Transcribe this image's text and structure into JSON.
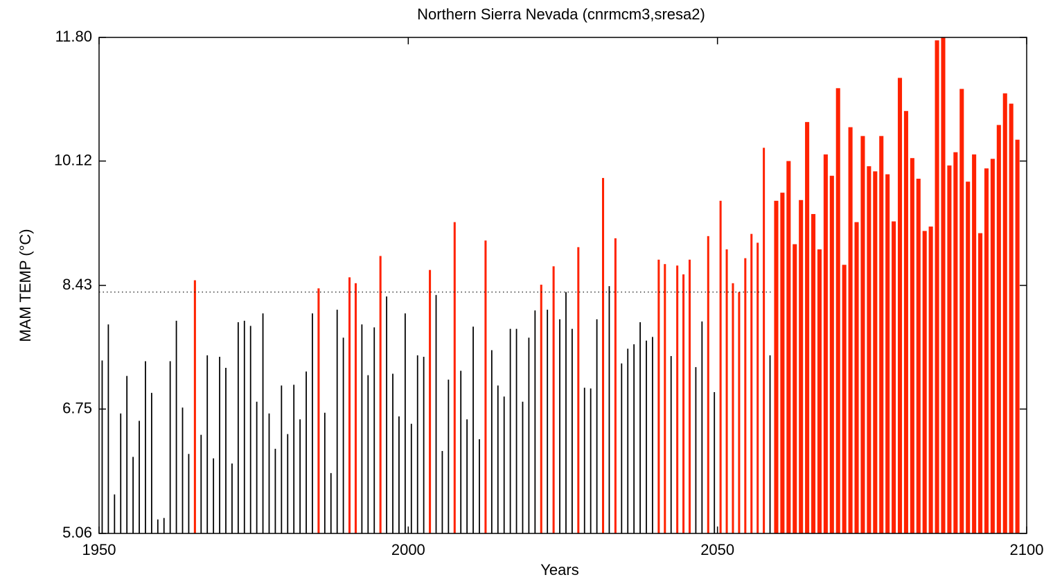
{
  "chart_data": {
    "type": "bar",
    "title": "Northern Sierra Nevada (cnrmcm3,sresa2)",
    "xlabel": "Years",
    "ylabel": "MAM TEMP (°C)",
    "xlim": [
      1950,
      2100
    ],
    "xticks": [
      1950,
      2000,
      2050,
      2100
    ],
    "ylim": [
      5.06,
      11.8
    ],
    "yticks": [
      5.06,
      6.75,
      8.43,
      10.12,
      {
        "value": 11.8,
        "label": "11.80"
      }
    ],
    "reference_line": {
      "value": 8.34,
      "x_end": 2059,
      "color": "#000000"
    },
    "x": [
      1951,
      1952,
      1953,
      1954,
      1955,
      1956,
      1957,
      1958,
      1959,
      1960,
      1961,
      1962,
      1963,
      1964,
      1965,
      1966,
      1967,
      1968,
      1969,
      1970,
      1971,
      1972,
      1973,
      1974,
      1975,
      1976,
      1977,
      1978,
      1979,
      1980,
      1981,
      1982,
      1983,
      1984,
      1985,
      1986,
      1987,
      1988,
      1989,
      1990,
      1991,
      1992,
      1993,
      1994,
      1995,
      1996,
      1997,
      1998,
      1999,
      2000,
      2001,
      2002,
      2003,
      2004,
      2005,
      2006,
      2007,
      2008,
      2009,
      2010,
      2011,
      2012,
      2013,
      2014,
      2015,
      2016,
      2017,
      2018,
      2019,
      2020,
      2021,
      2022,
      2023,
      2024,
      2025,
      2026,
      2027,
      2028,
      2029,
      2030,
      2031,
      2032,
      2033,
      2034,
      2035,
      2036,
      2037,
      2038,
      2039,
      2040,
      2041,
      2042,
      2043,
      2044,
      2045,
      2046,
      2047,
      2048,
      2049,
      2050,
      2051,
      2052,
      2053,
      2054,
      2055,
      2056,
      2057,
      2058,
      2059,
      2060,
      2061,
      2062,
      2063,
      2064,
      2065,
      2066,
      2067,
      2068,
      2069,
      2070,
      2071,
      2072,
      2073,
      2074,
      2075,
      2076,
      2077,
      2078,
      2079,
      2080,
      2081,
      2082,
      2083,
      2084,
      2085,
      2086,
      2087,
      2088,
      2089,
      2090,
      2091,
      2092,
      2093,
      2094,
      2095,
      2096,
      2097,
      2098,
      2099
    ],
    "values": [
      7.41,
      7.9,
      5.59,
      6.69,
      7.2,
      6.1,
      6.59,
      7.4,
      6.97,
      5.25,
      5.27,
      7.4,
      7.95,
      6.77,
      6.14,
      8.5,
      6.4,
      7.48,
      6.08,
      7.46,
      7.31,
      6.01,
      7.93,
      7.95,
      7.88,
      6.85,
      8.05,
      6.69,
      6.21,
      7.07,
      6.41,
      7.08,
      6.61,
      7.26,
      8.05,
      8.39,
      6.7,
      5.88,
      8.1,
      7.72,
      8.54,
      8.46,
      7.9,
      7.21,
      7.86,
      8.83,
      8.28,
      7.23,
      6.65,
      8.05,
      6.55,
      7.48,
      7.46,
      8.64,
      8.3,
      6.18,
      7.15,
      9.29,
      7.27,
      6.61,
      7.87,
      6.34,
      9.04,
      7.55,
      7.07,
      6.92,
      7.84,
      7.84,
      6.85,
      7.72,
      8.09,
      8.44,
      8.1,
      8.69,
      7.97,
      8.34,
      7.84,
      8.95,
      7.04,
      7.03,
      7.97,
      9.89,
      8.42,
      9.07,
      7.37,
      7.57,
      7.63,
      7.93,
      7.68,
      7.73,
      8.78,
      8.72,
      7.47,
      8.7,
      8.58,
      8.78,
      7.32,
      7.94,
      9.1,
      6.98,
      9.58,
      8.92,
      8.46,
      8.34,
      8.8,
      9.13,
      9.01,
      10.3,
      7.48,
      9.58,
      9.69,
      10.12,
      8.99,
      9.59,
      10.65,
      9.4,
      8.92,
      10.21,
      9.92,
      11.11,
      8.71,
      10.58,
      9.29,
      10.46,
      10.05,
      9.98,
      10.46,
      9.94,
      9.3,
      11.25,
      10.8,
      10.16,
      9.88,
      9.17,
      9.23,
      11.76,
      11.8,
      10.06,
      10.24,
      11.1,
      9.84,
      10.21,
      9.14,
      10.02,
      10.15,
      10.61,
      11.04,
      10.9,
      10.41
    ],
    "colors": [
      "#000000",
      "#000000",
      "#000000",
      "#000000",
      "#000000",
      "#000000",
      "#000000",
      "#000000",
      "#000000",
      "#000000",
      "#000000",
      "#000000",
      "#000000",
      "#000000",
      "#000000",
      "#ff2200",
      "#000000",
      "#000000",
      "#000000",
      "#000000",
      "#000000",
      "#000000",
      "#000000",
      "#000000",
      "#000000",
      "#000000",
      "#000000",
      "#000000",
      "#000000",
      "#000000",
      "#000000",
      "#000000",
      "#000000",
      "#000000",
      "#000000",
      "#ff2200",
      "#000000",
      "#000000",
      "#000000",
      "#000000",
      "#ff2200",
      "#ff2200",
      "#000000",
      "#000000",
      "#000000",
      "#ff2200",
      "#000000",
      "#000000",
      "#000000",
      "#000000",
      "#000000",
      "#000000",
      "#000000",
      "#ff2200",
      "#000000",
      "#000000",
      "#000000",
      "#ff2200",
      "#000000",
      "#000000",
      "#000000",
      "#000000",
      "#ff2200",
      "#000000",
      "#000000",
      "#000000",
      "#000000",
      "#000000",
      "#000000",
      "#000000",
      "#000000",
      "#ff2200",
      "#000000",
      "#ff2200",
      "#000000",
      "#000000",
      "#000000",
      "#ff2200",
      "#000000",
      "#000000",
      "#000000",
      "#ff2200",
      "#000000",
      "#ff2200",
      "#000000",
      "#000000",
      "#000000",
      "#000000",
      "#000000",
      "#000000",
      "#ff2200",
      "#ff2200",
      "#000000",
      "#ff2200",
      "#ff2200",
      "#ff2200",
      "#000000",
      "#000000",
      "#ff2200",
      "#000000",
      "#ff2200",
      "#ff2200",
      "#ff2200",
      "#ff2200",
      "#ff2200",
      "#ff2200",
      "#ff2200",
      "#ff2200",
      "#000000",
      "#ff2200",
      "#ff2200",
      "#ff2200",
      "#ff2200",
      "#ff2200",
      "#ff2200",
      "#ff2200",
      "#ff2200",
      "#ff2200",
      "#ff2200",
      "#ff2200",
      "#ff2200",
      "#ff2200",
      "#ff2200",
      "#ff2200",
      "#ff2200",
      "#ff2200",
      "#ff2200",
      "#ff2200",
      "#ff2200",
      "#ff2200",
      "#ff2200",
      "#ff2200",
      "#ff2200",
      "#ff2200",
      "#ff2200",
      "#ff2200",
      "#ff2200",
      "#ff2200",
      "#ff2200",
      "#ff2200",
      "#ff2200",
      "#ff2200",
      "#ff2200",
      "#ff2200",
      "#ff2200",
      "#ff2200",
      "#ff2200",
      "#ff2200",
      "#ff2200"
    ]
  }
}
